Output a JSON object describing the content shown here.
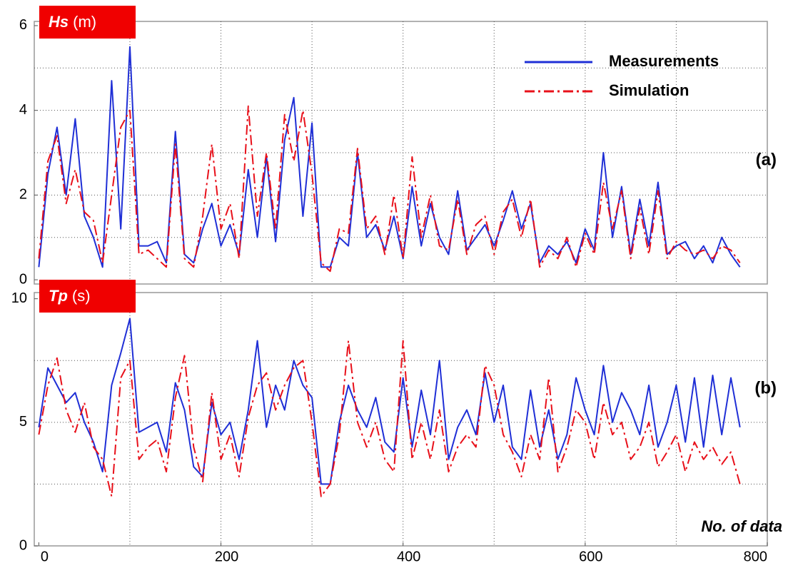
{
  "chart_data": [
    {
      "type": "line",
      "title_symbol": "Hs",
      "title_unit": "(m)",
      "panel_label": "(a)",
      "x": [
        0,
        10,
        20,
        30,
        40,
        50,
        60,
        70,
        80,
        90,
        100,
        110,
        120,
        130,
        140,
        150,
        160,
        170,
        180,
        190,
        200,
        210,
        220,
        230,
        240,
        250,
        260,
        270,
        280,
        290,
        300,
        310,
        320,
        330,
        340,
        350,
        360,
        370,
        380,
        390,
        400,
        410,
        420,
        430,
        440,
        450,
        460,
        470,
        480,
        490,
        500,
        510,
        520,
        530,
        540,
        550,
        560,
        570,
        580,
        590,
        600,
        610,
        620,
        630,
        640,
        650,
        660,
        670,
        680,
        690,
        700,
        710,
        720,
        730,
        740,
        750,
        760,
        770
      ],
      "xlim": [
        -5,
        800
      ],
      "xgrid": [
        100,
        200,
        300,
        400,
        500,
        600,
        700
      ],
      "ylim": [
        -0.1,
        6.1
      ],
      "yticks": [
        0,
        2,
        4,
        6
      ],
      "ygrid": [
        1,
        2,
        3,
        4,
        5
      ],
      "legend": "upper right",
      "series": [
        {
          "name": "Measurements",
          "color": "#1f2fd6",
          "dash": "solid",
          "values": [
            0.3,
            2.5,
            3.6,
            2.0,
            3.8,
            1.5,
            1.0,
            0.3,
            4.7,
            1.2,
            5.5,
            0.8,
            0.8,
            0.9,
            0.4,
            3.5,
            0.6,
            0.4,
            1.2,
            1.8,
            0.8,
            1.3,
            0.6,
            2.6,
            1.0,
            2.9,
            0.9,
            3.3,
            4.3,
            1.5,
            3.7,
            0.3,
            0.3,
            1.0,
            0.8,
            3.0,
            1.0,
            1.3,
            0.7,
            1.5,
            0.5,
            2.2,
            0.8,
            1.8,
            1.0,
            0.6,
            2.1,
            0.7,
            1.0,
            1.3,
            0.8,
            1.4,
            2.1,
            1.2,
            1.8,
            0.4,
            0.8,
            0.6,
            0.9,
            0.4,
            1.2,
            0.7,
            3.0,
            1.0,
            2.2,
            0.6,
            1.9,
            0.8,
            2.3,
            0.6,
            0.8,
            0.9,
            0.5,
            0.8,
            0.4,
            1.0,
            0.6,
            0.3
          ]
        },
        {
          "name": "Simulation",
          "color": "#e8101a",
          "dash": "dashdot",
          "values": [
            0.5,
            2.8,
            3.4,
            1.8,
            2.6,
            1.6,
            1.4,
            0.4,
            2.0,
            3.6,
            4.0,
            0.6,
            0.7,
            0.5,
            0.3,
            3.2,
            0.5,
            0.3,
            1.5,
            3.2,
            1.2,
            1.8,
            0.5,
            4.1,
            1.5,
            3.0,
            1.2,
            3.9,
            2.8,
            4.0,
            2.5,
            0.4,
            0.2,
            1.2,
            1.1,
            3.1,
            1.2,
            1.5,
            0.6,
            2.0,
            0.5,
            2.9,
            1.0,
            2.0,
            0.8,
            0.7,
            1.9,
            0.6,
            1.3,
            1.5,
            0.6,
            1.6,
            1.9,
            1.0,
            1.9,
            0.3,
            0.7,
            0.5,
            1.0,
            0.3,
            1.1,
            0.6,
            2.3,
            1.2,
            2.1,
            0.5,
            1.7,
            0.6,
            2.1,
            0.5,
            0.9,
            0.7,
            0.6,
            0.7,
            0.5,
            0.8,
            0.7,
            0.4
          ]
        }
      ]
    },
    {
      "type": "line",
      "title_symbol": "Tp",
      "title_unit": "(s)",
      "panel_label": "(b)",
      "xlabel": "No. of data",
      "x": [
        0,
        10,
        20,
        30,
        40,
        50,
        60,
        70,
        80,
        90,
        100,
        110,
        120,
        130,
        140,
        150,
        160,
        170,
        180,
        190,
        200,
        210,
        220,
        230,
        240,
        250,
        260,
        270,
        280,
        290,
        300,
        310,
        320,
        330,
        340,
        350,
        360,
        370,
        380,
        390,
        400,
        410,
        420,
        430,
        440,
        450,
        460,
        470,
        480,
        490,
        500,
        510,
        520,
        530,
        540,
        550,
        560,
        570,
        580,
        590,
        600,
        610,
        620,
        630,
        640,
        650,
        660,
        670,
        680,
        690,
        700,
        710,
        720,
        730,
        740,
        750,
        760,
        770
      ],
      "xlim": [
        -5,
        800
      ],
      "xticks": [
        0,
        200,
        400,
        600,
        800
      ],
      "xgrid": [
        100,
        200,
        300,
        400,
        500,
        600,
        700
      ],
      "ylim": [
        0,
        10.25
      ],
      "yticks": [
        0,
        5,
        10
      ],
      "ygrid": [
        2.5,
        5,
        7.5
      ],
      "series": [
        {
          "color": "#1f2fd6",
          "dash": "solid",
          "values": [
            4.8,
            7.2,
            6.5,
            5.8,
            6.2,
            5.0,
            4.2,
            3.0,
            6.5,
            7.8,
            9.2,
            4.6,
            4.8,
            5.0,
            3.8,
            6.6,
            5.5,
            3.2,
            2.8,
            5.8,
            4.5,
            5.0,
            3.5,
            5.5,
            8.3,
            4.8,
            6.5,
            5.5,
            7.5,
            6.5,
            6.0,
            2.5,
            2.5,
            5.0,
            6.5,
            5.5,
            4.8,
            6.0,
            4.2,
            3.8,
            6.8,
            4.0,
            6.3,
            4.5,
            7.5,
            3.5,
            4.8,
            5.5,
            4.5,
            7.0,
            5.0,
            6.5,
            4.0,
            3.5,
            6.3,
            4.0,
            5.5,
            3.5,
            4.5,
            6.8,
            5.5,
            4.5,
            7.3,
            5.0,
            6.2,
            5.5,
            4.5,
            6.5,
            4.0,
            5.0,
            6.5,
            4.2,
            6.8,
            4.0,
            6.9,
            4.5,
            6.8,
            4.8
          ]
        },
        {
          "color": "#e8101a",
          "dash": "dashdot",
          "values": [
            4.5,
            6.5,
            7.6,
            5.5,
            4.6,
            5.8,
            4.0,
            3.5,
            2.0,
            6.8,
            7.5,
            3.5,
            4.0,
            4.3,
            3.0,
            6.0,
            7.7,
            4.0,
            2.6,
            6.2,
            3.5,
            4.5,
            2.8,
            5.2,
            6.5,
            7.0,
            5.5,
            6.5,
            7.2,
            7.5,
            5.0,
            2.0,
            2.5,
            4.5,
            8.3,
            5.0,
            4.0,
            5.0,
            3.5,
            3.0,
            8.3,
            3.5,
            5.0,
            3.5,
            5.5,
            3.0,
            4.0,
            4.5,
            4.0,
            7.3,
            6.5,
            4.5,
            3.8,
            2.8,
            4.5,
            3.5,
            6.8,
            3.0,
            4.0,
            5.5,
            5.0,
            3.5,
            5.8,
            4.5,
            5.0,
            3.5,
            4.0,
            5.0,
            3.2,
            3.8,
            4.5,
            3.0,
            4.2,
            3.5,
            4.0,
            3.3,
            3.8,
            2.5
          ]
        }
      ]
    }
  ]
}
